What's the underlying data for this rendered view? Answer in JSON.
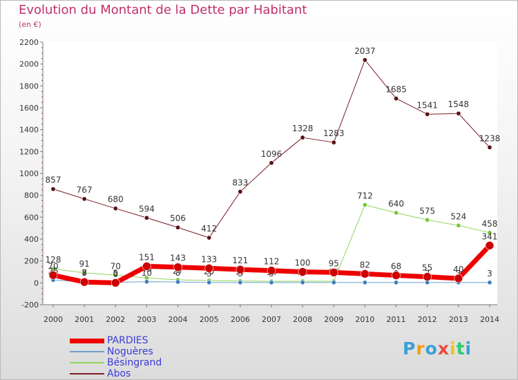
{
  "header": {
    "title": "Evolution du Montant de la Dette par Habitant",
    "unit": "(en €)"
  },
  "brand": {
    "text": "Proxiti",
    "letter_colors": [
      "#3aa0d8",
      "#f39c12",
      "#3aa0d8",
      "#e74c3c",
      "#f1c40f",
      "#2ecc71",
      "#3aa0d8"
    ]
  },
  "chart_data": {
    "type": "line",
    "x": [
      "2000",
      "2001",
      "2002",
      "2003",
      "2004",
      "2005",
      "2006",
      "2007",
      "2008",
      "2009",
      "2010",
      "2011",
      "2012",
      "2013",
      "2014"
    ],
    "ylim": [
      -200,
      2200
    ],
    "yticks": [
      "-200",
      "0",
      "200",
      "400",
      "600",
      "800",
      "1000",
      "1200",
      "1400",
      "1600",
      "1800",
      "2000",
      "2200"
    ],
    "grid": false,
    "legend_position": "bottom-left",
    "series": [
      {
        "name": "Abos",
        "color": "#7a1a22",
        "marker": "#5a1016",
        "width": 1,
        "values": [
          857,
          767,
          680,
          594,
          506,
          412,
          833,
          1096,
          1328,
          1283,
          2037,
          1685,
          1541,
          1548,
          1238
        ],
        "labels": [
          "857",
          "767",
          "680",
          "594",
          "506",
          "412",
          "833",
          "1096",
          "1328",
          "1283",
          "2037",
          "1685",
          "1541",
          "1548",
          "1238"
        ]
      },
      {
        "name": "Bésingrand",
        "color": "#8fd45a",
        "marker": "#78c63e",
        "width": 1,
        "values": [
          128,
          91,
          70,
          45,
          27,
          20,
          17,
          14,
          15,
          15,
          712,
          640,
          575,
          524,
          458
        ],
        "labels": [
          "128",
          "91",
          "70",
          "45",
          "27",
          "20",
          "17",
          "14",
          "15",
          "15",
          "712",
          "640",
          "575",
          "524",
          "458"
        ]
      },
      {
        "name": "Noguères",
        "color": "#6a9ec9",
        "marker": "#3d7fbf",
        "width": 1,
        "values": [
          25,
          8,
          5,
          10,
          8,
          3,
          3,
          3,
          3,
          3,
          3,
          3,
          3,
          3,
          3
        ],
        "labels": [
          "25",
          "8",
          "5",
          "10",
          "8",
          "3",
          "3",
          "3",
          "3",
          "3",
          "3",
          "3",
          "3",
          "3",
          "3"
        ]
      },
      {
        "name": "PARDIES",
        "color": "#ee0000",
        "marker": "#cc0000",
        "width": 7,
        "values": [
          70,
          7,
          0,
          151,
          143,
          133,
          121,
          112,
          100,
          95,
          82,
          68,
          55,
          40,
          341
        ],
        "labels": [
          "70",
          "7",
          "0",
          "151",
          "143",
          "133",
          "121",
          "112",
          "100",
          "95",
          "82",
          "68",
          "55",
          "40",
          "341"
        ]
      }
    ]
  },
  "legend": [
    {
      "name": "PARDIES",
      "color": "#ee0000",
      "thickness": 7
    },
    {
      "name": "Noguères",
      "color": "#6a9ec9",
      "thickness": 2
    },
    {
      "name": "Bésingrand",
      "color": "#8fd45a",
      "thickness": 2
    },
    {
      "name": "Abos",
      "color": "#7a1a22",
      "thickness": 2
    }
  ]
}
